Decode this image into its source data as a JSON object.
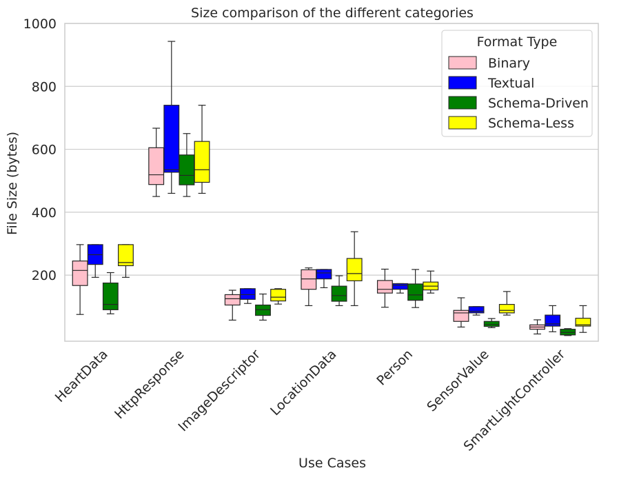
{
  "chart_data": {
    "type": "box",
    "title": "Size comparison of the different categories",
    "xlabel": "Use Cases",
    "ylabel": "File Size (bytes)",
    "ylim": [
      -10,
      1000
    ],
    "yticks": [
      200,
      400,
      600,
      800,
      1000
    ],
    "grid": "y",
    "categories": [
      "HeartData",
      "HttpResponse",
      "ImageDescriptor",
      "LocationData",
      "Person",
      "SensorValue",
      "SmartLightController"
    ],
    "legend": {
      "title": "Format Type",
      "position": "top-right"
    },
    "series": [
      {
        "name": "Binary",
        "color": "#ffc0cb",
        "boxes": [
          {
            "min": 75,
            "q1": 167,
            "median": 215,
            "q3": 245,
            "max": 297
          },
          {
            "min": 450,
            "q1": 488,
            "median": 519,
            "q3": 605,
            "max": 667
          },
          {
            "min": 57,
            "q1": 105,
            "median": 125,
            "q3": 138,
            "max": 152
          },
          {
            "min": 103,
            "q1": 155,
            "median": 188,
            "q3": 217,
            "max": 223
          },
          {
            "min": 98,
            "q1": 143,
            "median": 155,
            "q3": 183,
            "max": 219
          },
          {
            "min": 35,
            "q1": 53,
            "median": 80,
            "q3": 88,
            "max": 128
          },
          {
            "min": 13,
            "q1": 28,
            "median": 35,
            "q3": 42,
            "max": 58
          }
        ]
      },
      {
        "name": "Textual",
        "color": "#0000ff",
        "boxes": [
          {
            "min": 193,
            "q1": 234,
            "median": 265,
            "q3": 297,
            "max": 297
          },
          {
            "min": 460,
            "q1": 527,
            "median": 535,
            "q3": 740,
            "max": 943
          },
          {
            "min": 110,
            "q1": 123,
            "median": 138,
            "q3": 157,
            "max": 157
          },
          {
            "min": 160,
            "q1": 188,
            "median": 207,
            "q3": 218,
            "max": 218
          },
          {
            "min": 143,
            "q1": 155,
            "median": 168,
            "q3": 173,
            "max": 173
          },
          {
            "min": 73,
            "q1": 80,
            "median": 85,
            "q3": 100,
            "max": 100
          },
          {
            "min": 20,
            "q1": 38,
            "median": 45,
            "q3": 73,
            "max": 103
          }
        ]
      },
      {
        "name": "Schema-Driven",
        "color": "#008000",
        "boxes": [
          {
            "min": 77,
            "q1": 90,
            "median": 107,
            "q3": 175,
            "max": 208
          },
          {
            "min": 450,
            "q1": 487,
            "median": 517,
            "q3": 582,
            "max": 650
          },
          {
            "min": 57,
            "q1": 72,
            "median": 90,
            "q3": 105,
            "max": 140
          },
          {
            "min": 103,
            "q1": 117,
            "median": 135,
            "q3": 165,
            "max": 198
          },
          {
            "min": 97,
            "q1": 120,
            "median": 137,
            "q3": 172,
            "max": 218
          },
          {
            "min": 33,
            "q1": 37,
            "median": 43,
            "q3": 53,
            "max": 62
          },
          {
            "min": 8,
            "q1": 10,
            "median": 18,
            "q3": 28,
            "max": 30
          }
        ]
      },
      {
        "name": "Schema-Less",
        "color": "#ffff00",
        "boxes": [
          {
            "min": 193,
            "q1": 230,
            "median": 240,
            "q3": 297,
            "max": 297
          },
          {
            "min": 460,
            "q1": 495,
            "median": 535,
            "q3": 625,
            "max": 740
          },
          {
            "min": 108,
            "q1": 118,
            "median": 130,
            "q3": 155,
            "max": 157
          },
          {
            "min": 103,
            "q1": 182,
            "median": 205,
            "q3": 253,
            "max": 338
          },
          {
            "min": 143,
            "q1": 153,
            "median": 165,
            "q3": 178,
            "max": 213
          },
          {
            "min": 73,
            "q1": 80,
            "median": 88,
            "q3": 107,
            "max": 148
          },
          {
            "min": 18,
            "q1": 38,
            "median": 42,
            "q3": 63,
            "max": 103
          }
        ]
      }
    ]
  }
}
